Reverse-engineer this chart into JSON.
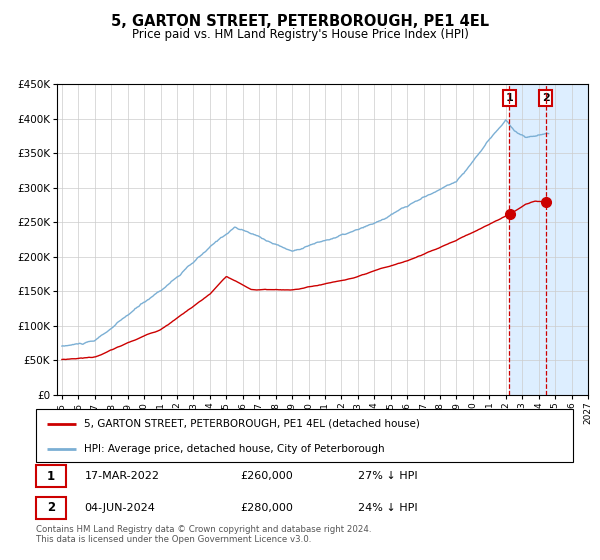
{
  "title": "5, GARTON STREET, PETERBOROUGH, PE1 4EL",
  "subtitle": "Price paid vs. HM Land Registry's House Price Index (HPI)",
  "ylim": [
    0,
    450000
  ],
  "hpi_color": "#7bafd4",
  "price_color": "#cc0000",
  "marker_color": "#cc0000",
  "background_color": "#ffffff",
  "grid_color": "#cccccc",
  "vline_color": "#cc0000",
  "highlight_color": "#ddeeff",
  "transaction1_date": "17-MAR-2022",
  "transaction1_price": 260000,
  "transaction1_pct": "27% ↓ HPI",
  "transaction2_date": "04-JUN-2024",
  "transaction2_price": 280000,
  "transaction2_pct": "24% ↓ HPI",
  "legend_label_price": "5, GARTON STREET, PETERBOROUGH, PE1 4EL (detached house)",
  "legend_label_hpi": "HPI: Average price, detached house, City of Peterborough",
  "footnote": "Contains HM Land Registry data © Crown copyright and database right 2024.\nThis data is licensed under the Open Government Licence v3.0.",
  "start_year": 1995,
  "end_year": 2027,
  "transaction1_year": 2022.21,
  "transaction2_year": 2024.43
}
